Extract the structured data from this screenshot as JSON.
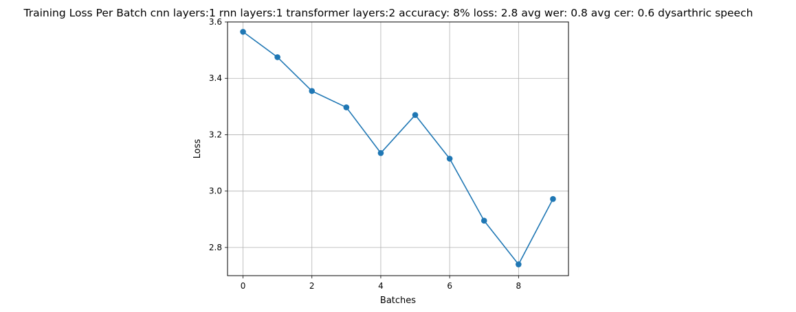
{
  "chart_data": {
    "type": "line",
    "title": "Training Loss Per Batch cnn layers:1 rnn layers:1 transformer layers:2 accuracy: 8% loss: 2.8 avg wer: 0.8 avg cer: 0.6 dysarthric speech",
    "xlabel": "Batches",
    "ylabel": "Loss",
    "xlim": [
      -0.45,
      9.45
    ],
    "ylim": [
      2.7,
      3.6
    ],
    "x_ticks": [
      0,
      2,
      4,
      6,
      8
    ],
    "y_ticks": [
      2.8,
      3.0,
      3.2,
      3.4,
      3.6
    ],
    "x_tick_labels": [
      "0",
      "2",
      "4",
      "6",
      "8"
    ],
    "y_tick_labels": [
      "2.8",
      "3.0",
      "3.2",
      "3.4",
      "3.6"
    ],
    "grid": true,
    "marker": "circle",
    "color": "#1f77b4",
    "x": [
      0,
      1,
      2,
      3,
      4,
      5,
      6,
      7,
      8,
      9
    ],
    "series": [
      {
        "values": [
          3.565,
          3.475,
          3.355,
          3.297,
          3.135,
          3.27,
          3.115,
          2.895,
          2.74,
          2.972
        ]
      }
    ]
  }
}
